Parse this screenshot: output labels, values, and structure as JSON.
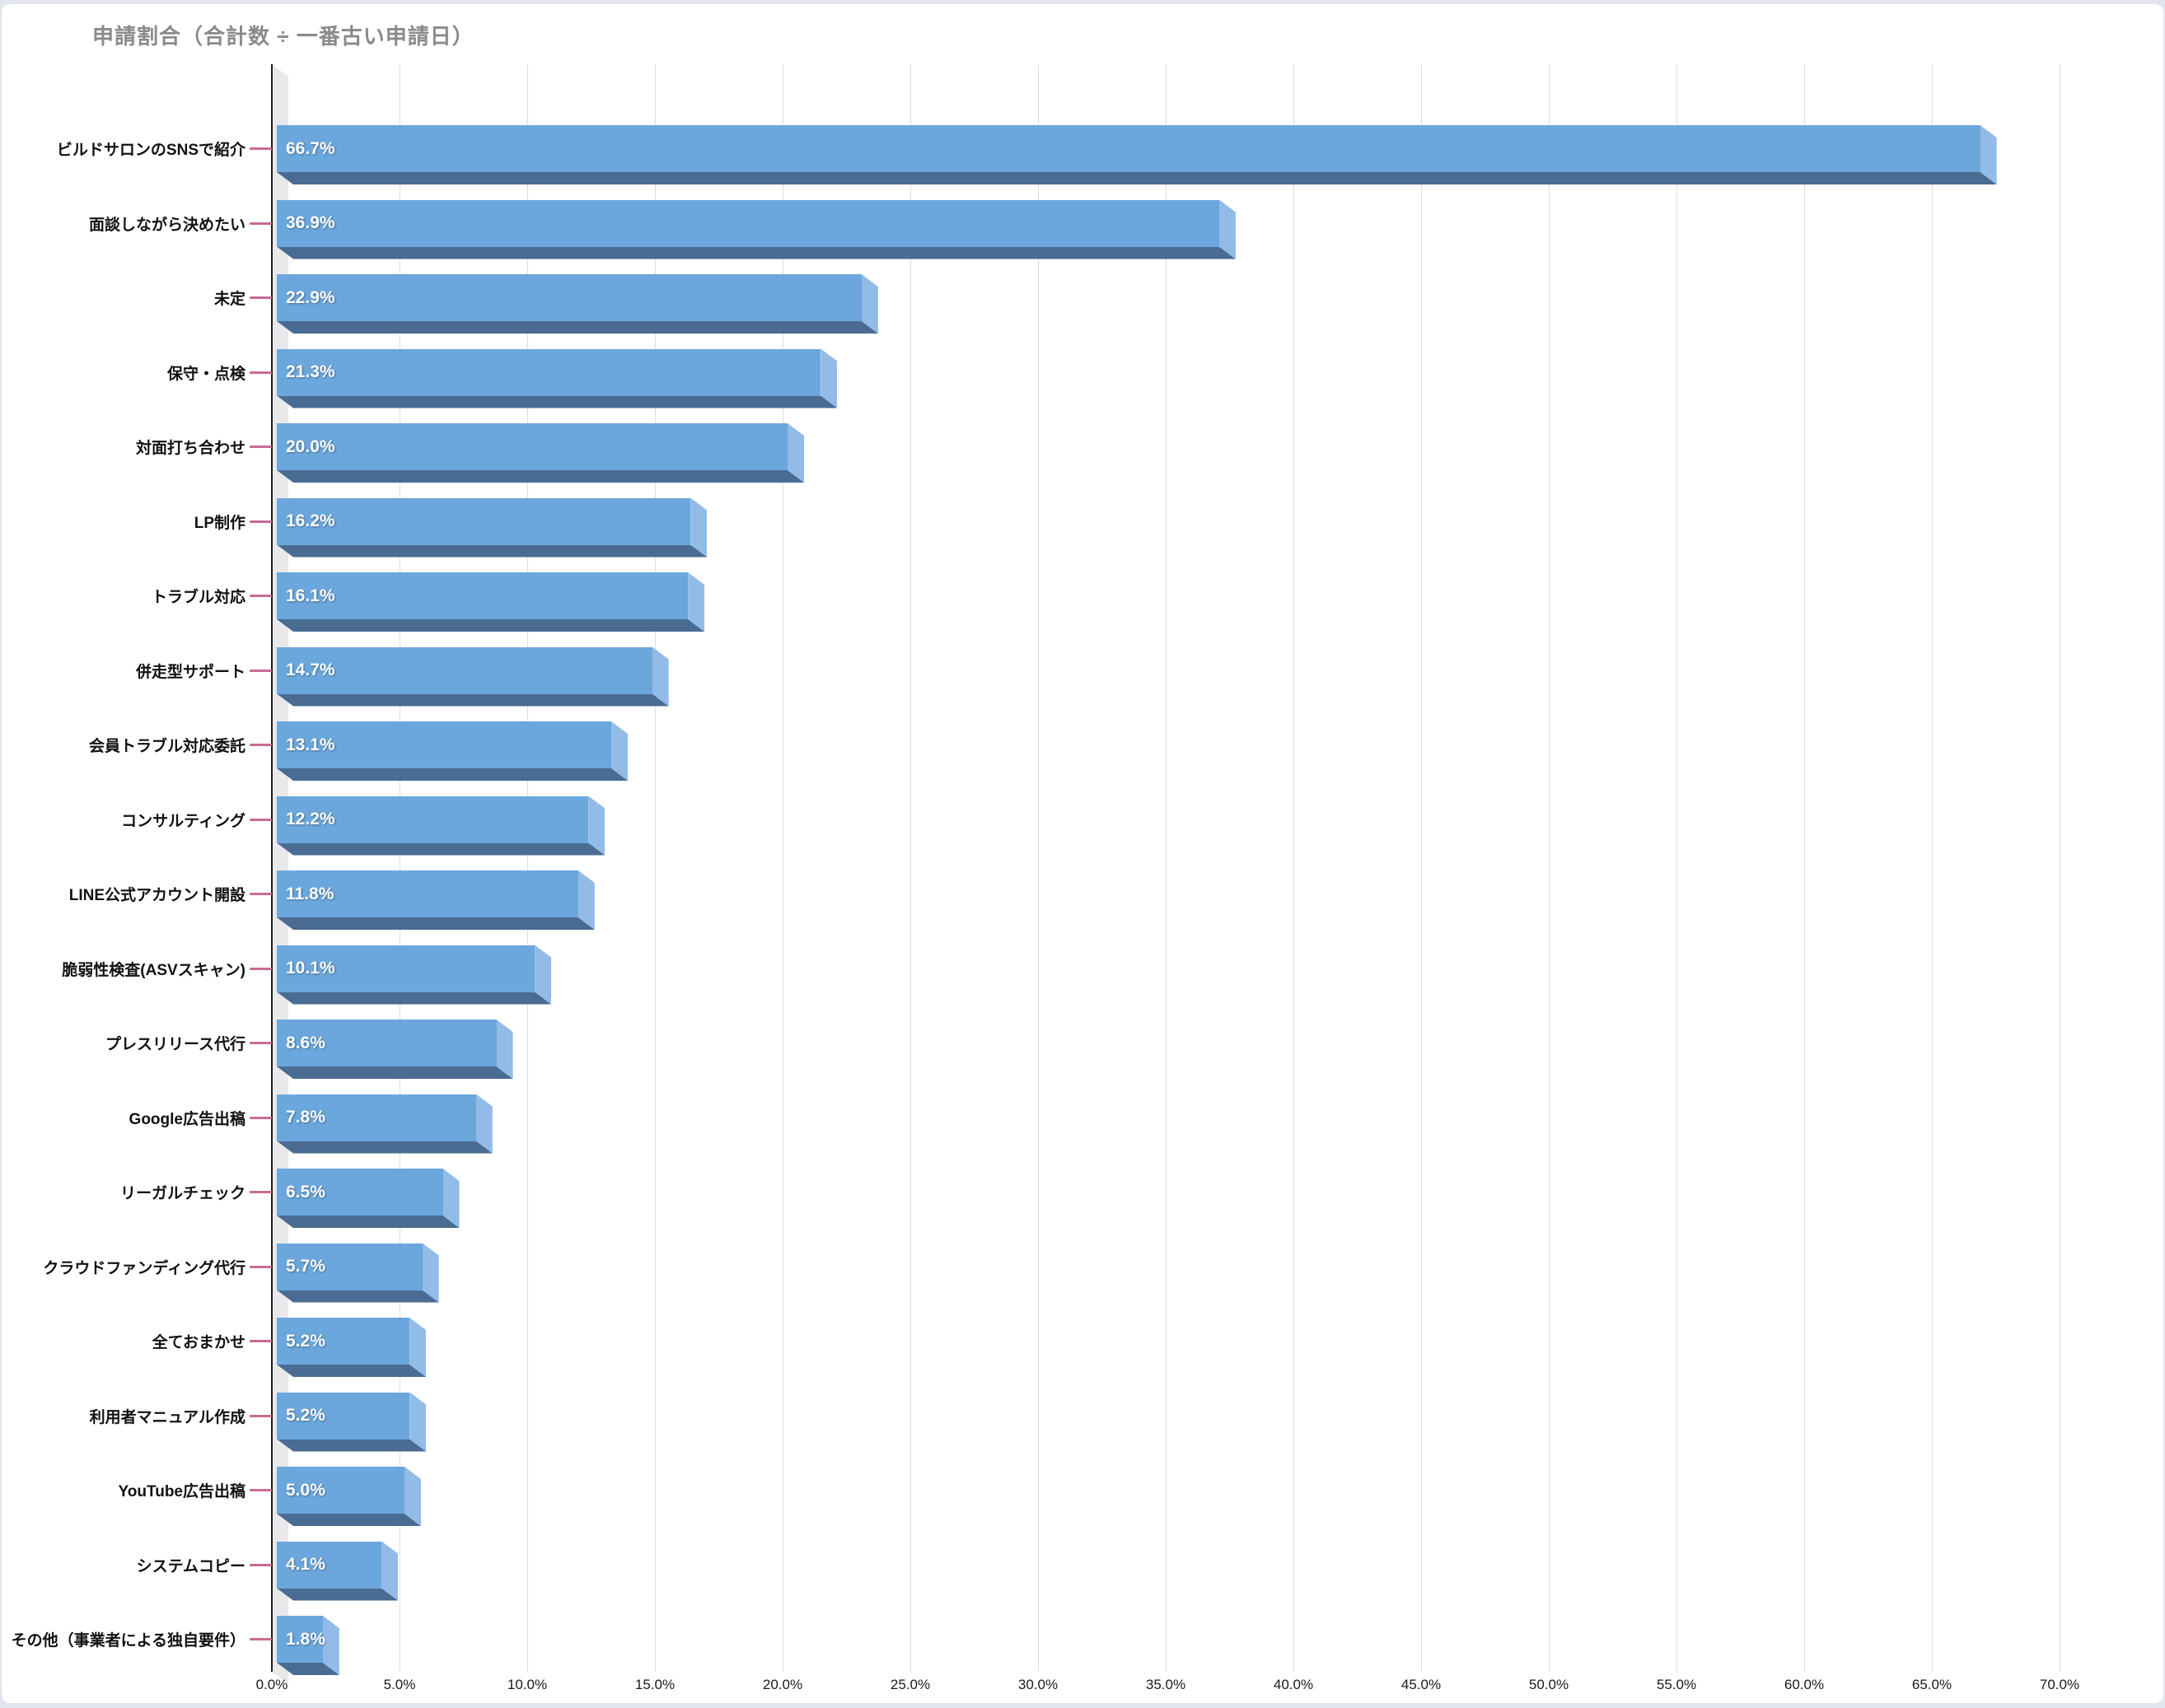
{
  "chart_data": {
    "type": "bar",
    "orientation": "horizontal",
    "title": "申請割合（合計数 ÷ 一番古い申請日）",
    "categories": [
      "ビルドサロンのSNSで紹介",
      "面談しながら決めたい",
      "未定",
      "保守・点検",
      "対面打ち合わせ",
      "LP制作",
      "トラブル対応",
      "併走型サポート",
      "会員トラブル対応委託",
      "コンサルティング",
      "LINE公式アカウント開設",
      "脆弱性検査(ASVスキャン)",
      "プレスリリース代行",
      "Google広告出稿",
      "リーガルチェック",
      "クラウドファンディング代行",
      "全ておまかせ",
      "利用者マニュアル作成",
      "YouTube広告出稿",
      "システムコピー",
      "その他（事業者による独自要件）"
    ],
    "values": [
      66.7,
      36.9,
      22.9,
      21.3,
      20.0,
      16.2,
      16.1,
      14.7,
      13.1,
      12.2,
      11.8,
      10.1,
      8.6,
      7.8,
      6.5,
      5.7,
      5.2,
      5.2,
      5.0,
      4.1,
      1.8
    ],
    "value_labels": [
      "66.7%",
      "36.9%",
      "22.9%",
      "21.3%",
      "20.0%",
      "16.2%",
      "16.1%",
      "14.7%",
      "13.1%",
      "12.2%",
      "11.8%",
      "10.1%",
      "8.6%",
      "7.8%",
      "6.5%",
      "5.7%",
      "5.2%",
      "5.2%",
      "5.0%",
      "4.1%",
      "1.8%"
    ],
    "xlabel": "",
    "ylabel": "",
    "xlim": [
      0,
      70
    ],
    "x_tick_values": [
      0,
      5,
      10,
      15,
      20,
      25,
      30,
      35,
      40,
      45,
      50,
      55,
      60,
      65,
      70
    ],
    "x_ticks": [
      "0.0%",
      "5.0%",
      "10.0%",
      "15.0%",
      "20.0%",
      "25.0%",
      "30.0%",
      "35.0%",
      "40.0%",
      "45.0%",
      "50.0%",
      "55.0%",
      "60.0%",
      "65.0%",
      "70.0%"
    ],
    "grid": true,
    "legend": "none",
    "colors": {
      "bar_face": "#6ba7dc",
      "bar_bottom": "#4a6b92",
      "bar_side": "#92bce7",
      "wall": "#e9e9eb",
      "gridline": "#dcdcdc",
      "axis": "#1f1f1f",
      "category_tick": "#c96b94",
      "value_text": "#ffffff",
      "label_text": "#111111",
      "title_text": "#8a8a8a"
    }
  }
}
